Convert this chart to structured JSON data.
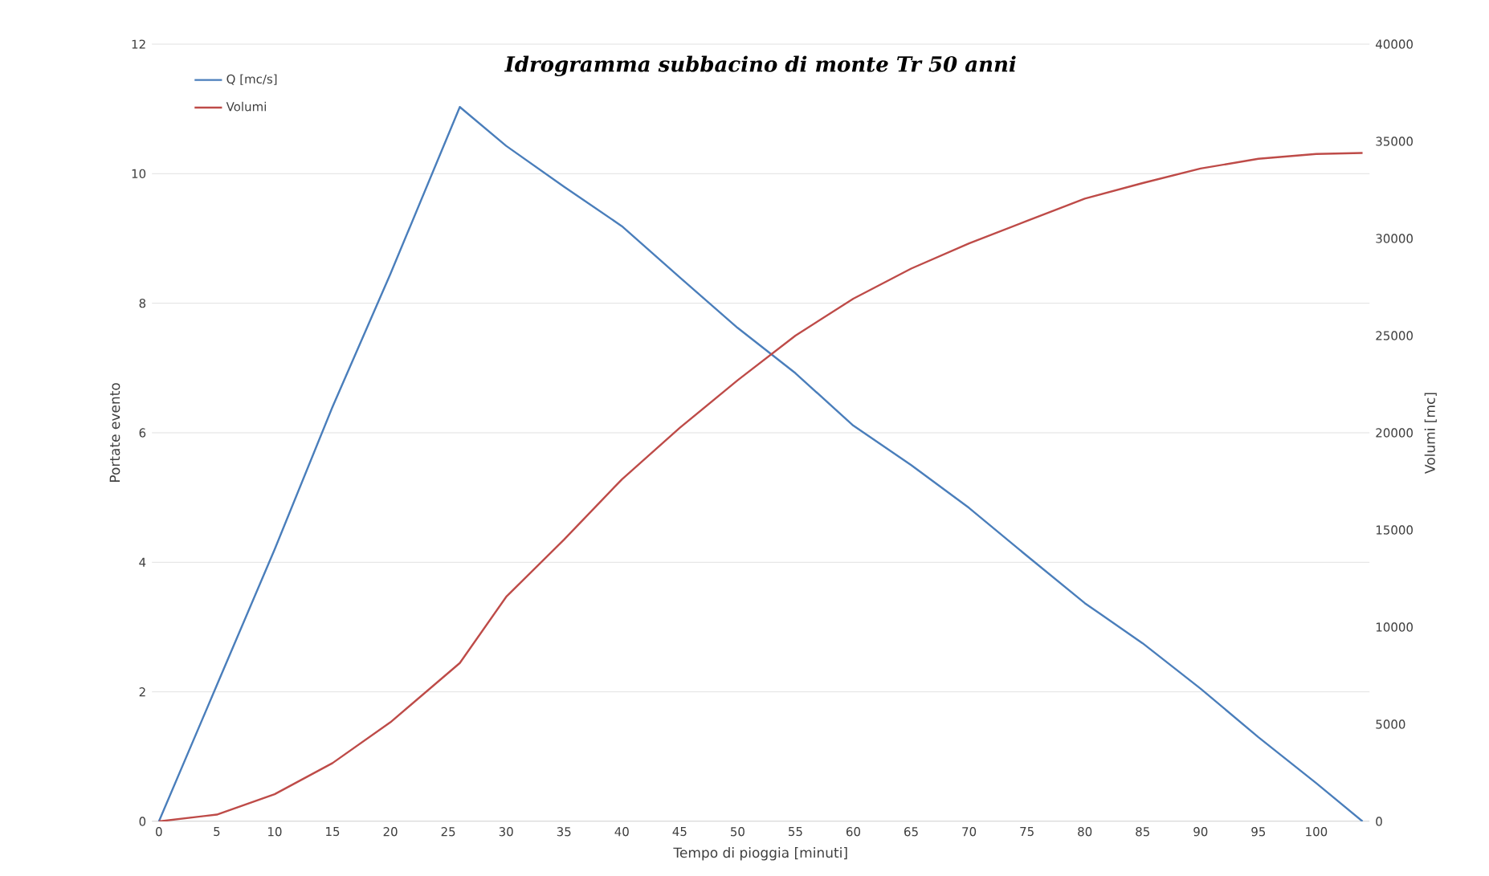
{
  "chart_data": {
    "type": "line",
    "title": "Idrogramma subbacino di monte Tr 50 anni",
    "xlabel": "Tempo di pioggia [minuti]",
    "ylabel": "Portate evento",
    "y2label": "Volumi [mc]",
    "x": [
      0,
      5,
      10,
      15,
      20,
      26,
      30,
      35,
      40,
      45,
      50,
      55,
      60,
      65,
      70,
      75,
      80,
      85,
      90,
      95,
      100,
      104
    ],
    "series": [
      {
        "name": "Q [mc/s]",
        "color": "#4a7ebb",
        "values": [
          0,
          2.1,
          4.2,
          6.4,
          8.45,
          11.03,
          10.43,
          9.8,
          9.19,
          8.4,
          7.62,
          6.92,
          6.11,
          5.5,
          4.84,
          4.1,
          3.37,
          2.75,
          2.05,
          1.3,
          0.59,
          0
        ]
      },
      {
        "name": "Volumi",
        "color": "#be4b48",
        "axis": "y2",
        "values": [
          0,
          350,
          1400,
          3000,
          5100,
          8150,
          11550,
          14500,
          17600,
          20250,
          22700,
          25000,
          26900,
          28450,
          29750,
          30900,
          32050,
          32850,
          33600,
          34100,
          34350,
          34400
        ]
      }
    ],
    "xlim": [
      -0.6,
      104.6
    ],
    "xticks": [
      0,
      5,
      10,
      15,
      20,
      25,
      30,
      35,
      40,
      45,
      50,
      55,
      60,
      65,
      70,
      75,
      80,
      85,
      90,
      95,
      100
    ],
    "ylim": [
      0,
      12
    ],
    "yticks": [
      0,
      2,
      4,
      6,
      8,
      10,
      12
    ],
    "y2lim": [
      0,
      40000
    ],
    "y2ticks": [
      0,
      5000,
      10000,
      15000,
      20000,
      25000,
      30000,
      35000,
      40000
    ],
    "grid": "y",
    "legend": "top left",
    "marker": "none",
    "line_style": "solid"
  }
}
